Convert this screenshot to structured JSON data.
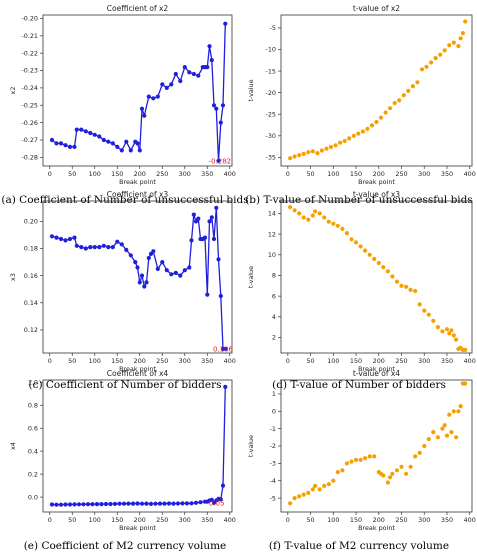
{
  "chart_data": [
    {
      "type": "line",
      "title": "Coefficient of x2",
      "xlabel": "Break point",
      "ylabel": "x2",
      "caption": "(a) Coefficient of Number of unsuccessful bids",
      "xlim": [
        -15,
        405
      ],
      "ylim": [
        -0.285,
        -0.198
      ],
      "xticks": [
        "0",
        "50",
        "100",
        "150",
        "200",
        "250",
        "300",
        "350",
        "400"
      ],
      "yticks": [
        "-0.28",
        "-0.27",
        "-0.26",
        "-0.25",
        "-0.24",
        "-0.23",
        "-0.22",
        "-0.21",
        "-0.20"
      ],
      "color": "#1f1fdd",
      "annotation": {
        "text": "-0.282",
        "x": 378,
        "y": -0.282
      },
      "x": [
        5,
        15,
        25,
        35,
        45,
        55,
        60,
        70,
        80,
        90,
        100,
        110,
        120,
        130,
        140,
        150,
        160,
        170,
        180,
        190,
        195,
        200,
        205,
        210,
        220,
        230,
        240,
        250,
        260,
        270,
        280,
        290,
        300,
        310,
        320,
        330,
        340,
        345,
        350,
        355,
        360,
        365,
        370,
        375,
        380,
        385,
        390
      ],
      "y": [
        -0.27,
        -0.272,
        -0.272,
        -0.273,
        -0.274,
        -0.274,
        -0.264,
        -0.264,
        -0.265,
        -0.266,
        -0.267,
        -0.268,
        -0.27,
        -0.271,
        -0.272,
        -0.274,
        -0.276,
        -0.271,
        -0.276,
        -0.271,
        -0.272,
        -0.276,
        -0.252,
        -0.256,
        -0.245,
        -0.246,
        -0.245,
        -0.238,
        -0.24,
        -0.238,
        -0.232,
        -0.236,
        -0.228,
        -0.231,
        -0.232,
        -0.233,
        -0.228,
        -0.228,
        -0.228,
        -0.216,
        -0.224,
        -0.25,
        -0.252,
        -0.282,
        -0.26,
        -0.25,
        -0.203
      ]
    },
    {
      "type": "scatter",
      "title": "t-value of x2",
      "xlabel": "Break point",
      "ylabel": "t-value",
      "caption": "(b) T-value of Number of unsuccessful bids",
      "xlim": [
        -15,
        405
      ],
      "ylim": [
        -37,
        -2
      ],
      "xticks": [
        "0",
        "50",
        "100",
        "150",
        "200",
        "250",
        "300",
        "350",
        "400"
      ],
      "yticks": [
        "-35",
        "-30",
        "-25",
        "-20",
        "-15",
        "-10",
        "-5"
      ],
      "color": "#f5a000",
      "x": [
        5,
        15,
        25,
        35,
        45,
        55,
        65,
        75,
        85,
        95,
        105,
        115,
        125,
        135,
        145,
        155,
        165,
        175,
        185,
        195,
        205,
        215,
        225,
        235,
        245,
        255,
        265,
        275,
        285,
        295,
        305,
        315,
        325,
        335,
        345,
        355,
        365,
        375,
        380,
        385,
        390
      ],
      "y": [
        -35.2,
        -34.8,
        -34.5,
        -34.2,
        -33.8,
        -33.6,
        -34.0,
        -33.4,
        -33.0,
        -32.6,
        -32.2,
        -31.6,
        -31.2,
        -30.6,
        -30.0,
        -29.5,
        -29.0,
        -28.4,
        -27.6,
        -26.8,
        -25.8,
        -24.6,
        -23.6,
        -22.4,
        -21.8,
        -20.6,
        -19.6,
        -18.5,
        -17.6,
        -14.6,
        -14.0,
        -13.0,
        -12.0,
        -11.2,
        -10.2,
        -9.0,
        -8.4,
        -9.2,
        -7.4,
        -6.2,
        -3.5
      ]
    },
    {
      "type": "line",
      "title": "Coefficient of x3",
      "xlabel": "Break point",
      "ylabel": "x3",
      "caption": "(c) Coefficient of Number of bidders",
      "xlim": [
        -15,
        405
      ],
      "ylim": [
        0.103,
        0.215
      ],
      "xticks": [
        "0",
        "50",
        "100",
        "150",
        "200",
        "250",
        "300",
        "350",
        "400"
      ],
      "yticks": [
        "0.12",
        "0.14",
        "0.16",
        "0.18",
        "0.20"
      ],
      "color": "#1f1fdd",
      "annotation": {
        "text": "0.106",
        "x": 385,
        "y": 0.106
      },
      "x": [
        5,
        15,
        25,
        35,
        45,
        55,
        60,
        70,
        80,
        90,
        100,
        110,
        120,
        130,
        140,
        150,
        160,
        170,
        180,
        190,
        195,
        200,
        205,
        210,
        215,
        220,
        225,
        230,
        240,
        250,
        260,
        270,
        280,
        290,
        300,
        310,
        315,
        320,
        325,
        330,
        335,
        340,
        345,
        350,
        355,
        360,
        365,
        370,
        375,
        380,
        385,
        390
      ],
      "y": [
        0.189,
        0.188,
        0.187,
        0.186,
        0.187,
        0.188,
        0.182,
        0.181,
        0.18,
        0.181,
        0.181,
        0.181,
        0.182,
        0.181,
        0.181,
        0.185,
        0.183,
        0.179,
        0.175,
        0.17,
        0.166,
        0.155,
        0.16,
        0.152,
        0.155,
        0.173,
        0.176,
        0.178,
        0.165,
        0.17,
        0.164,
        0.161,
        0.162,
        0.16,
        0.164,
        0.166,
        0.186,
        0.205,
        0.2,
        0.202,
        0.187,
        0.187,
        0.188,
        0.146,
        0.2,
        0.203,
        0.187,
        0.21,
        0.172,
        0.145,
        0.106,
        0.106
      ]
    },
    {
      "type": "scatter",
      "title": "t-value of x3",
      "xlabel": "Break point",
      "ylabel": "t-value",
      "caption": "(d) T-value of Number of bidders",
      "xlim": [
        -15,
        405
      ],
      "ylim": [
        0.5,
        15.2
      ],
      "xticks": [
        "0",
        "50",
        "100",
        "150",
        "200",
        "250",
        "300",
        "350",
        "400"
      ],
      "yticks": [
        "2",
        "4",
        "6",
        "8",
        "10",
        "12",
        "14"
      ],
      "color": "#f5a000",
      "x": [
        5,
        15,
        25,
        35,
        45,
        55,
        60,
        70,
        80,
        90,
        100,
        110,
        120,
        130,
        140,
        150,
        160,
        170,
        180,
        190,
        200,
        210,
        220,
        230,
        240,
        250,
        260,
        270,
        280,
        290,
        300,
        310,
        320,
        330,
        340,
        350,
        355,
        360,
        365,
        370,
        375,
        380,
        385,
        390
      ],
      "y": [
        14.6,
        14.3,
        14.0,
        13.6,
        13.4,
        13.8,
        14.2,
        14.0,
        13.6,
        13.2,
        13.0,
        12.8,
        12.5,
        12.1,
        11.5,
        11.2,
        10.8,
        10.4,
        10.0,
        9.6,
        9.2,
        8.8,
        8.4,
        7.9,
        7.4,
        7.0,
        6.9,
        6.6,
        6.5,
        5.2,
        4.6,
        4.2,
        3.6,
        3.0,
        2.6,
        2.8,
        2.4,
        2.7,
        2.2,
        1.8,
        0.9,
        1.0,
        0.8,
        0.8
      ]
    },
    {
      "type": "line",
      "title": "Coefficient of x4",
      "xlabel": "Break point",
      "ylabel": "x4",
      "caption": "(e) Coefficient of M2 currency volume",
      "xlim": [
        -15,
        405
      ],
      "ylim": [
        -0.13,
        1.02
      ],
      "xticks": [
        "0",
        "50",
        "100",
        "150",
        "200",
        "250",
        "300",
        "350",
        "400"
      ],
      "yticks": [
        "0.0",
        "0.2",
        "0.4",
        "0.6",
        "0.8",
        "1.0"
      ],
      "color": "#1f1fdd",
      "annotation": {
        "text": "-0.05",
        "x": 368,
        "y": -0.05
      },
      "x": [
        5,
        15,
        25,
        35,
        45,
        55,
        65,
        75,
        85,
        95,
        105,
        115,
        125,
        135,
        145,
        155,
        165,
        175,
        185,
        195,
        205,
        215,
        225,
        235,
        245,
        255,
        265,
        275,
        285,
        295,
        305,
        315,
        325,
        335,
        345,
        350,
        355,
        360,
        365,
        370,
        375,
        380,
        385,
        390
      ],
      "y": [
        -0.065,
        -0.066,
        -0.066,
        -0.065,
        -0.065,
        -0.064,
        -0.063,
        -0.063,
        -0.062,
        -0.062,
        -0.061,
        -0.061,
        -0.06,
        -0.06,
        -0.059,
        -0.058,
        -0.058,
        -0.057,
        -0.057,
        -0.056,
        -0.058,
        -0.057,
        -0.059,
        -0.058,
        -0.057,
        -0.057,
        -0.056,
        -0.057,
        -0.056,
        -0.055,
        -0.055,
        -0.054,
        -0.05,
        -0.045,
        -0.04,
        -0.04,
        -0.03,
        -0.025,
        -0.05,
        -0.03,
        -0.015,
        -0.02,
        0.1,
        0.96
      ]
    },
    {
      "type": "scatter",
      "title": "t-value of x4",
      "xlabel": "Break point",
      "ylabel": "t-value",
      "caption": "(f) T-value of M2 currency volume",
      "xlim": [
        -15,
        405
      ],
      "ylim": [
        -5.8,
        1.8
      ],
      "xticks": [
        "0",
        "50",
        "100",
        "150",
        "200",
        "250",
        "300",
        "350",
        "400"
      ],
      "yticks": [
        "-5",
        "-4",
        "-3",
        "-2",
        "-1",
        "0",
        "1"
      ],
      "color": "#f5a000",
      "x": [
        5,
        15,
        25,
        35,
        45,
        55,
        60,
        70,
        80,
        90,
        100,
        110,
        120,
        130,
        140,
        150,
        160,
        170,
        180,
        190,
        200,
        205,
        210,
        220,
        225,
        230,
        240,
        250,
        260,
        270,
        280,
        290,
        300,
        310,
        320,
        330,
        340,
        345,
        350,
        355,
        360,
        365,
        370,
        375,
        380,
        385,
        390
      ],
      "y": [
        -5.3,
        -5.0,
        -4.9,
        -4.8,
        -4.7,
        -4.5,
        -4.3,
        -4.5,
        -4.3,
        -4.2,
        -4.0,
        -3.5,
        -3.4,
        -3.0,
        -2.9,
        -2.8,
        -2.8,
        -2.7,
        -2.6,
        -2.6,
        -3.5,
        -3.6,
        -3.7,
        -4.1,
        -3.8,
        -3.6,
        -3.4,
        -3.2,
        -3.6,
        -3.2,
        -2.6,
        -2.4,
        -2.0,
        -1.6,
        -1.2,
        -1.5,
        -1.0,
        -0.8,
        -1.4,
        -0.2,
        -1.2,
        0.0,
        -1.5,
        0.0,
        0.3,
        1.6,
        1.6
      ]
    }
  ]
}
